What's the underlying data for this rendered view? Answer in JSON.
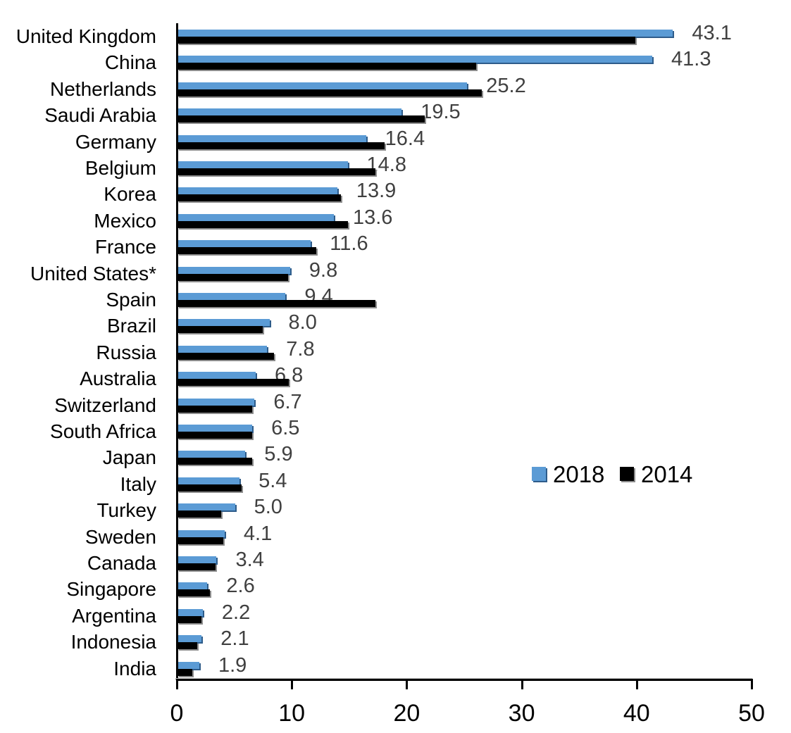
{
  "colors": {
    "bar_2018": "#5B9BD5",
    "bar_2014": "#000000",
    "shadow_2018": "#2E5C8A",
    "shadow_2014": "#8C8C8C",
    "value_label": "#404040",
    "axis": "#000000"
  },
  "chart_data": {
    "type": "bar",
    "orientation": "horizontal",
    "title": "",
    "xlabel": "",
    "ylabel": "",
    "xlim": [
      0,
      50
    ],
    "x_ticks": [
      "0",
      "10",
      "20",
      "30",
      "40",
      "50"
    ],
    "grid": false,
    "legend_position": "middle-right",
    "categories": [
      "United Kingdom",
      "China",
      "Netherlands",
      "Saudi Arabia",
      "Germany",
      "Belgium",
      "Korea",
      "Mexico",
      "France",
      "United States*",
      "Spain",
      "Brazil",
      "Russia",
      "Australia",
      "Switzerland",
      "South Africa",
      "Japan",
      "Italy",
      "Turkey",
      "Sweden",
      "Canada",
      "Singapore",
      "Argentina",
      "Indonesia",
      "India"
    ],
    "series": [
      {
        "name": "2018",
        "color": "#5B9BD5",
        "values": [
          43.1,
          41.3,
          25.2,
          19.5,
          16.4,
          14.8,
          13.9,
          13.6,
          11.6,
          9.8,
          9.4,
          8.0,
          7.8,
          6.8,
          6.7,
          6.5,
          5.9,
          5.4,
          5.0,
          4.1,
          3.4,
          2.6,
          2.2,
          2.1,
          1.9
        ]
      },
      {
        "name": "2014",
        "color": "#000000",
        "values": [
          39.8,
          26.0,
          26.5,
          21.5,
          18.0,
          17.2,
          14.2,
          14.8,
          12.1,
          9.6,
          17.2,
          7.4,
          8.4,
          9.7,
          6.5,
          6.5,
          6.5,
          5.6,
          3.8,
          4.0,
          3.3,
          2.8,
          2.1,
          1.7,
          1.3
        ]
      }
    ],
    "data_labels": [
      "43.1",
      "41.3",
      "25.2",
      "19.5",
      "16.4",
      "14.8",
      "13.9",
      "13.6",
      "11.6",
      "9.8",
      "9.4",
      "8.0",
      "7.8",
      "6.8",
      "6.7",
      "6.5",
      "5.9",
      "5.4",
      "5.0",
      "4.1",
      "3.4",
      "2.6",
      "2.2",
      "2.1",
      "1.9"
    ],
    "data_label_series": "2018",
    "legend": [
      {
        "label": "2018",
        "color": "#5B9BD5"
      },
      {
        "label": "2014",
        "color": "#000000"
      }
    ]
  }
}
